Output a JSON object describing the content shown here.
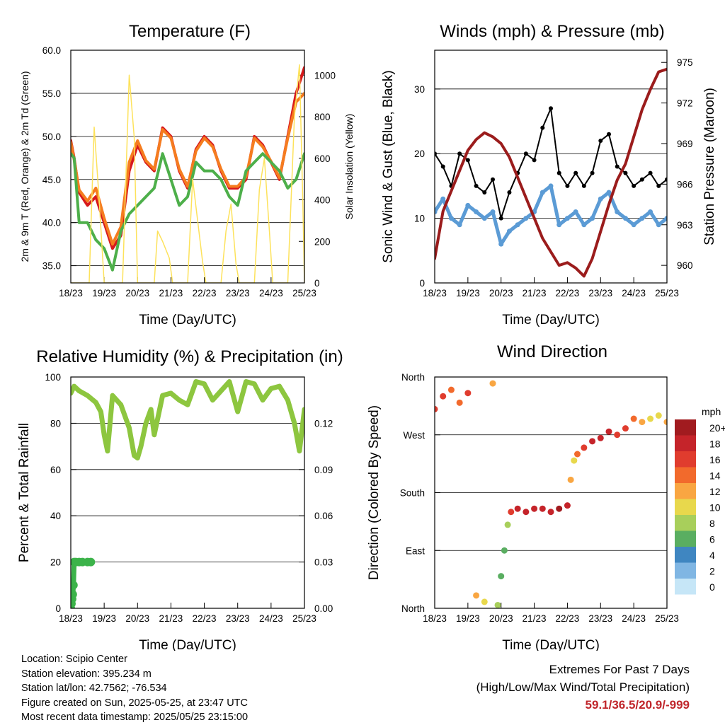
{
  "chart_data": [
    {
      "type": "line",
      "title": "Temperature (F)",
      "xlabel": "Time (Day/UTC)",
      "ylabel": "2m & 9m T (Red, Orange) & 2m Td (Green)",
      "ylabel_right": "Solar Insolation (Yellow)",
      "x_ticks": [
        "18/23",
        "19/23",
        "20/23",
        "21/23",
        "22/23",
        "23/23",
        "24/23",
        "25/23"
      ],
      "y_ticks": [
        "35.0",
        "40.0",
        "45.0",
        "50.0",
        "55.0",
        "60.0"
      ],
      "y_right_ticks": [
        "0",
        "200",
        "400",
        "600",
        "800",
        "1000"
      ],
      "ylim": [
        33,
        60
      ],
      "y_right_lim": [
        0,
        1120
      ],
      "grid": true,
      "series": [
        {
          "name": "2m T",
          "color": "#d7191c",
          "x": [
            0,
            0.1,
            0.25,
            0.5,
            0.75,
            1,
            1.25,
            1.5,
            1.75,
            2,
            2.25,
            2.5,
            2.75,
            3,
            3.25,
            3.5,
            3.75,
            4,
            4.25,
            4.5,
            4.75,
            5,
            5.25,
            5.5,
            5.75,
            6,
            6.25,
            6.5,
            6.75,
            7
          ],
          "values": [
            49.5,
            47.5,
            43.5,
            42,
            43,
            40,
            37,
            38.5,
            46,
            49,
            47,
            46,
            51,
            50,
            46,
            44,
            48.5,
            50,
            49,
            46,
            44,
            44,
            45,
            50,
            49,
            47,
            45,
            50,
            55,
            58
          ]
        },
        {
          "name": "9m T",
          "color": "#f57c1f",
          "x": [
            0,
            0.1,
            0.25,
            0.5,
            0.75,
            1,
            1.25,
            1.5,
            1.75,
            2,
            2.25,
            2.5,
            2.75,
            3,
            3.25,
            3.5,
            3.75,
            4,
            4.25,
            4.5,
            4.75,
            5,
            5.25,
            5.5,
            5.75,
            6,
            6.25,
            6.5,
            6.75,
            7
          ],
          "values": [
            49.3,
            47.3,
            43.8,
            42.5,
            44,
            40.5,
            37.5,
            39.5,
            47,
            49.5,
            47.2,
            46.2,
            50.8,
            49.8,
            46.2,
            44.2,
            48.3,
            49.8,
            48.8,
            46.2,
            44.2,
            44.2,
            45.3,
            49.8,
            48.8,
            47.1,
            45.2,
            49.8,
            54,
            55
          ]
        },
        {
          "name": "2m Td",
          "color": "#4daf4a",
          "x": [
            0,
            0.1,
            0.25,
            0.5,
            0.75,
            1,
            1.25,
            1.5,
            1.75,
            2,
            2.25,
            2.5,
            2.75,
            3,
            3.25,
            3.5,
            3.75,
            4,
            4.25,
            4.5,
            4.75,
            5,
            5.25,
            5.5,
            5.75,
            6,
            6.25,
            6.5,
            6.75,
            7
          ],
          "values": [
            48,
            47.5,
            40,
            40,
            38,
            37,
            34.5,
            39,
            41,
            42,
            43,
            44,
            48,
            45,
            42,
            43,
            47,
            46,
            46,
            45,
            43,
            42,
            46,
            47,
            48,
            47,
            46,
            44,
            45,
            48
          ]
        },
        {
          "name": "Solar Insolation",
          "color": "#fde25b",
          "axis": "right",
          "x": [
            0,
            0.55,
            0.7,
            0.85,
            1,
            1.05,
            1.55,
            1.75,
            1.9,
            2,
            2.05,
            2.5,
            2.6,
            2.75,
            2.95,
            3.05,
            3.5,
            3.65,
            3.8,
            3.95,
            4.05,
            4.5,
            4.65,
            4.8,
            4.95,
            5.05,
            5.5,
            5.65,
            5.8,
            5.95,
            6.05,
            6.5,
            6.7,
            6.85,
            6.95,
            7
          ],
          "values": [
            0,
            0,
            750,
            400,
            0,
            0,
            0,
            1000,
            700,
            0,
            0,
            0,
            250,
            200,
            120,
            0,
            0,
            500,
            300,
            100,
            0,
            0,
            250,
            380,
            90,
            0,
            0,
            450,
            600,
            250,
            0,
            0,
            800,
            1050,
            400,
            0
          ]
        }
      ]
    },
    {
      "type": "scatter",
      "title": "Winds (mph) & Pressure (mb)",
      "xlabel": "Time (Day/UTC)",
      "ylabel": "Sonic Wind & Gust (Blue, Black)",
      "ylabel_right": "Station Pressure (Maroon)",
      "x_ticks": [
        "18/23",
        "19/23",
        "20/23",
        "21/23",
        "22/23",
        "23/23",
        "24/23",
        "25/23"
      ],
      "y_ticks": [
        "0",
        "10",
        "20",
        "30"
      ],
      "y_right_ticks": [
        "960",
        "963",
        "966",
        "969",
        "972",
        "975"
      ],
      "ylim": [
        0,
        36
      ],
      "y_right_lim": [
        958.7,
        975.9
      ],
      "grid": true,
      "series": [
        {
          "name": "Sonic Wind",
          "color": "#5b9bd5",
          "x": [
            0,
            0.25,
            0.5,
            0.75,
            1,
            1.25,
            1.5,
            1.75,
            2,
            2.25,
            2.5,
            2.75,
            3,
            3.25,
            3.5,
            3.75,
            4,
            4.25,
            4.5,
            4.75,
            5,
            5.25,
            5.5,
            5.75,
            6,
            6.25,
            6.5,
            6.75,
            7
          ],
          "values": [
            11,
            13,
            10,
            9,
            12,
            11,
            10,
            11,
            6,
            8,
            9,
            10,
            11,
            14,
            15,
            9,
            10,
            11,
            9,
            10,
            13,
            14,
            11,
            10,
            9,
            10,
            11,
            9,
            10
          ]
        },
        {
          "name": "Gust",
          "color": "#000000",
          "x": [
            0,
            0.25,
            0.5,
            0.75,
            1,
            1.25,
            1.5,
            1.75,
            2,
            2.25,
            2.5,
            2.75,
            3,
            3.25,
            3.5,
            3.75,
            4,
            4.25,
            4.5,
            4.75,
            5,
            5.25,
            5.5,
            5.75,
            6,
            6.25,
            6.5,
            6.75,
            7
          ],
          "values": [
            20,
            18,
            15,
            20,
            19,
            15,
            14,
            16,
            10,
            14,
            17,
            20,
            19,
            24,
            27,
            17,
            15,
            17,
            15,
            17,
            22,
            23,
            18,
            17,
            15,
            16,
            17,
            15,
            16
          ]
        },
        {
          "name": "Station Pressure",
          "color": "#9b1c1c",
          "axis": "right",
          "x": [
            0,
            0.25,
            0.5,
            0.75,
            1,
            1.25,
            1.5,
            1.75,
            2,
            2.25,
            2.5,
            2.75,
            3,
            3.25,
            3.5,
            3.75,
            4,
            4.25,
            4.5,
            4.75,
            5,
            5.25,
            5.5,
            5.75,
            6,
            6.25,
            6.5,
            6.75,
            7
          ],
          "values": [
            960.5,
            964,
            965.5,
            967,
            968.5,
            969.3,
            969.8,
            969.5,
            969,
            968,
            966.5,
            965,
            963.5,
            962,
            961,
            960,
            960.2,
            959.8,
            959.2,
            960.5,
            962.5,
            964.5,
            966.3,
            967.5,
            969.5,
            971.5,
            973,
            974.3,
            974.5
          ]
        }
      ]
    },
    {
      "type": "line",
      "title": "Relative Humidity (%) & Precipitation (in)",
      "xlabel": "Time (Day/UTC)",
      "ylabel": "Percent & Total Rainfall",
      "x_ticks": [
        "18/23",
        "19/23",
        "20/23",
        "21/23",
        "22/23",
        "23/23",
        "24/23",
        "25/23"
      ],
      "y_ticks": [
        "0",
        "20",
        "40",
        "60",
        "80",
        "100"
      ],
      "y_right_ticks": [
        "0.00",
        "0.03",
        "0.06",
        "0.09",
        "0.12"
      ],
      "ylim": [
        0,
        100
      ],
      "y_right_lim": [
        0,
        0.15
      ],
      "grid": true,
      "series": [
        {
          "name": "Relative Humidity",
          "color": "#8dc63f",
          "x": [
            0,
            0.1,
            0.25,
            0.5,
            0.75,
            0.9,
            1,
            1.1,
            1.25,
            1.5,
            1.75,
            1.9,
            2,
            2.1,
            2.25,
            2.4,
            2.5,
            2.75,
            3,
            3.25,
            3.5,
            3.75,
            4,
            4.25,
            4.5,
            4.75,
            5,
            5.25,
            5.5,
            5.75,
            6,
            6.25,
            6.5,
            6.7,
            6.85,
            7
          ],
          "values": [
            93,
            96,
            94,
            92,
            89,
            85,
            75,
            68,
            92,
            88,
            78,
            66,
            65,
            70,
            80,
            86,
            75,
            92,
            93,
            90,
            88,
            98,
            97,
            90,
            94,
            98,
            85,
            98,
            97,
            90,
            95,
            96,
            90,
            80,
            68,
            86
          ]
        },
        {
          "name": "Total Rainfall",
          "color": "#3cb34a",
          "axis": "right",
          "x": [
            0,
            0.02,
            0.04,
            0.06,
            0.08,
            0.1,
            0.15,
            0.25,
            0.35,
            0.5,
            0.6
          ],
          "values": [
            0,
            0.003,
            0.006,
            0.009,
            0.015,
            0.03,
            0.03,
            0.03,
            0.03,
            0.03,
            0.03
          ]
        }
      ]
    },
    {
      "type": "scatter",
      "title": "Wind Direction",
      "xlabel": "Time (Day/UTC)",
      "ylabel": "Direction (Colored By Speed)",
      "x_ticks": [
        "18/23",
        "19/23",
        "20/23",
        "21/23",
        "22/23",
        "23/23",
        "24/23",
        "25/23"
      ],
      "y_ticks": [
        "North",
        "East",
        "South",
        "West",
        "North"
      ],
      "ylim": [
        0,
        360
      ],
      "grid": true,
      "colorbar": {
        "title": "mph",
        "labels": [
          "20+",
          "18",
          "16",
          "14",
          "12",
          "10",
          "8",
          "6",
          "4",
          "2",
          "0"
        ],
        "colors": [
          "#a11b1f",
          "#c5242a",
          "#e03c2e",
          "#f26a2c",
          "#f9a642",
          "#e8d84c",
          "#a8cf5b",
          "#5aae61",
          "#3f86c1",
          "#80b6e3",
          "#c6e6f7"
        ]
      },
      "series": [
        {
          "name": "Wind Direction",
          "x": [
            0,
            0.25,
            0.5,
            0.75,
            1,
            1.25,
            1.5,
            1.75,
            1.9,
            2,
            2.1,
            2.2,
            2.3,
            2.5,
            2.75,
            3,
            3.25,
            3.5,
            3.75,
            4,
            4.1,
            4.2,
            4.3,
            4.5,
            4.75,
            5,
            5.25,
            5.5,
            5.75,
            6,
            6.25,
            6.5,
            6.75,
            7
          ],
          "values": [
            310,
            330,
            340,
            320,
            335,
            20,
            10,
            350,
            5,
            50,
            90,
            130,
            150,
            155,
            150,
            155,
            155,
            150,
            155,
            160,
            200,
            230,
            240,
            250,
            260,
            265,
            275,
            270,
            280,
            295,
            290,
            295,
            300,
            290
          ],
          "speeds": [
            16,
            15,
            14,
            13,
            15,
            12,
            9,
            11,
            8,
            6,
            6,
            7,
            16,
            17,
            18,
            17,
            18,
            18,
            19,
            17,
            12,
            9,
            14,
            16,
            18,
            17,
            18,
            15,
            15,
            13,
            11,
            10,
            9,
            11
          ]
        }
      ]
    }
  ],
  "footer": {
    "location": "Location: Scipio Center",
    "elevation": "Station elevation: 395.234 m",
    "latlon": "Station lat/lon: 42.7562; -76.534",
    "created": "Figure created on Sun, 2025-05-25, at 23:47 UTC",
    "recent": "Most recent data timestamp: 2025/05/25 23:15:00"
  },
  "extremes": {
    "title": "Extremes For Past 7 Days",
    "subtitle": "(High/Low/Max Wind/Total Precipitation)",
    "values": "59.1/36.5/20.9/-999",
    "color": "#c0262b"
  }
}
